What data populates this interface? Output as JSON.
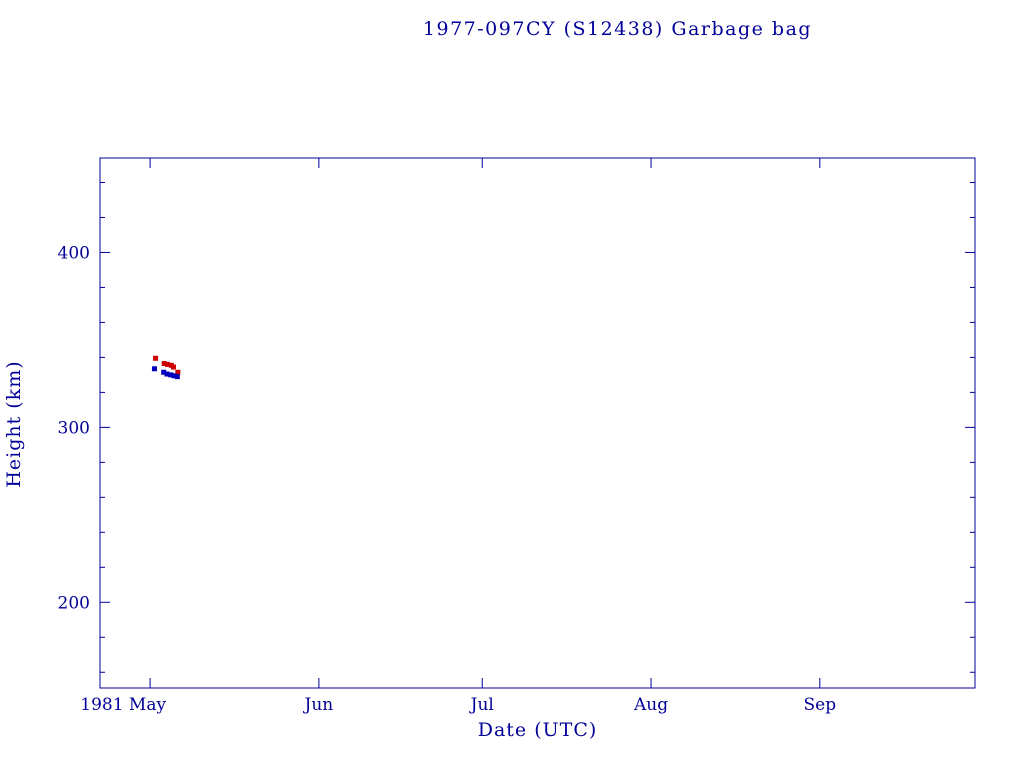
{
  "chart_data": {
    "type": "scatter",
    "title": "1977-097CY (S12438) Garbage bag",
    "xlabel": "Date (UTC)",
    "ylabel": "Height (km)",
    "axis_color": "#000099",
    "x_unit": "days since 1981-05-01",
    "xlim_days": [
      -9.2,
      151.5
    ],
    "ylim": [
      151,
      454
    ],
    "x_ticks": [
      {
        "day": 0,
        "label": "1981 May"
      },
      {
        "day": 31,
        "label": "Jun"
      },
      {
        "day": 61,
        "label": "Jul"
      },
      {
        "day": 92,
        "label": "Aug"
      },
      {
        "day": 123,
        "label": "Sep"
      }
    ],
    "y_ticks_major": [
      200,
      300,
      400
    ],
    "y_ticks_minor": {
      "start": 160,
      "end": 440,
      "step": 20
    },
    "grid": false,
    "legend": "none",
    "series": [
      {
        "name": "red-points",
        "color": "#cc0000",
        "marker": "square",
        "points": [
          {
            "day": 1.0,
            "height_km": 339.5
          },
          {
            "day": 2.6,
            "height_km": 336.5
          },
          {
            "day": 3.2,
            "height_km": 336.0
          },
          {
            "day": 3.9,
            "height_km": 335.5
          },
          {
            "day": 4.3,
            "height_km": 334.5
          },
          {
            "day": 5.1,
            "height_km": 331.5
          }
        ]
      },
      {
        "name": "blue-points",
        "color": "#0000bb",
        "marker": "square",
        "points": [
          {
            "day": 0.8,
            "height_km": 333.5
          },
          {
            "day": 2.5,
            "height_km": 331.5
          },
          {
            "day": 3.1,
            "height_km": 330.5
          },
          {
            "day": 3.8,
            "height_km": 330.0
          },
          {
            "day": 4.4,
            "height_km": 329.5
          },
          {
            "day": 5.0,
            "height_km": 329.0
          }
        ]
      }
    ]
  }
}
